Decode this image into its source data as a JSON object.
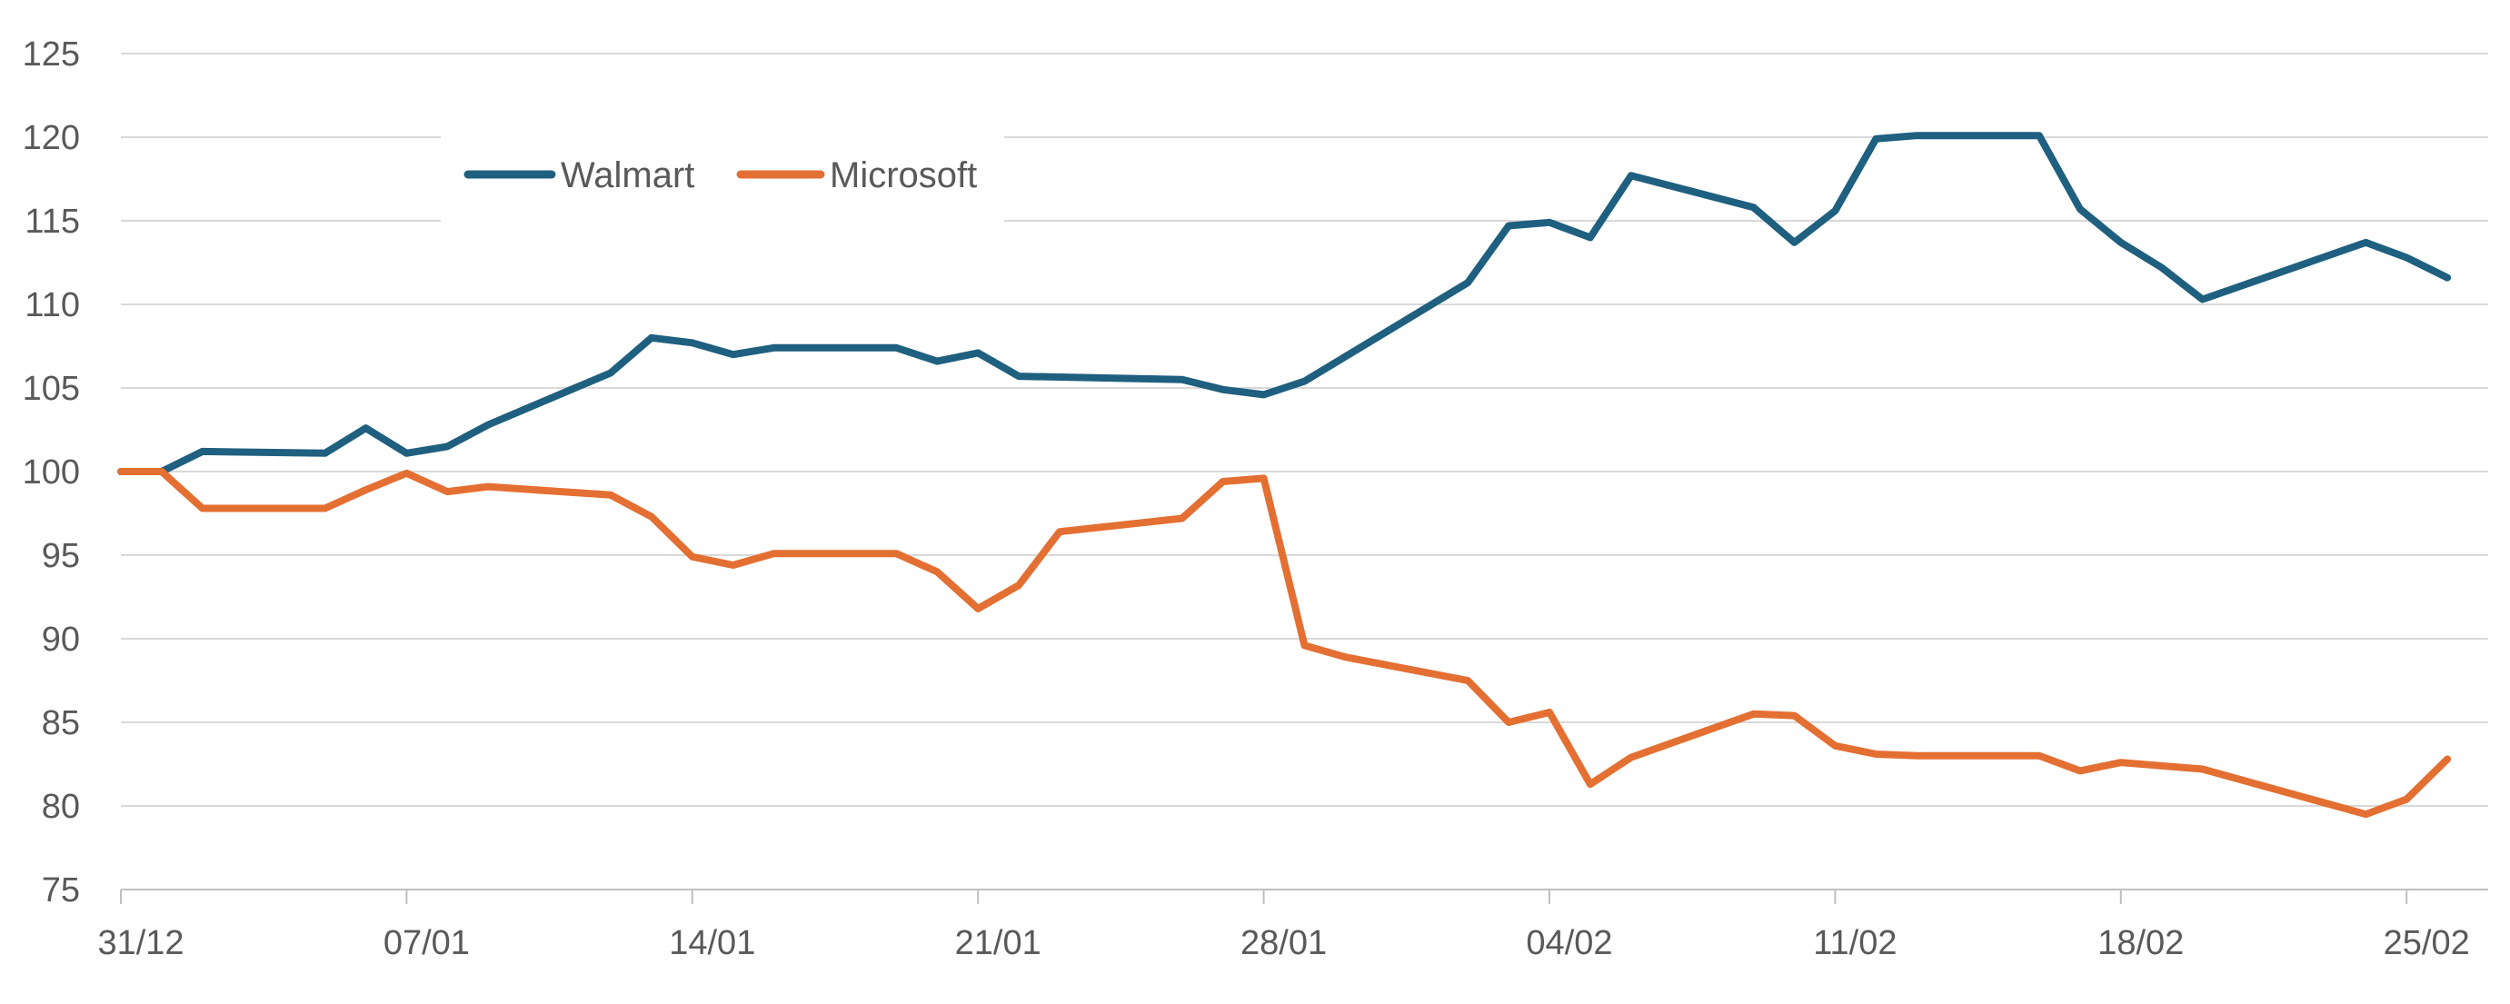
{
  "chart_data": {
    "type": "line",
    "title": "",
    "xlabel": "",
    "ylabel": "",
    "ylim": [
      75,
      125
    ],
    "yticks": [
      75,
      80,
      85,
      90,
      95,
      100,
      105,
      110,
      115,
      120,
      125
    ],
    "xlim": [
      0,
      58
    ],
    "xticks": [
      {
        "x": 0,
        "label": "31/12"
      },
      {
        "x": 7,
        "label": "07/01"
      },
      {
        "x": 14,
        "label": "14/01"
      },
      {
        "x": 21,
        "label": "21/01"
      },
      {
        "x": 28,
        "label": "28/01"
      },
      {
        "x": 35,
        "label": "04/02"
      },
      {
        "x": 42,
        "label": "11/02"
      },
      {
        "x": 49,
        "label": "18/02"
      },
      {
        "x": 56,
        "label": "25/02"
      }
    ],
    "grid": true,
    "legend": "top-left",
    "series": [
      {
        "name": "Walmart",
        "color": "#1f5f7f",
        "x": [
          0,
          1,
          2,
          5,
          6,
          7,
          8,
          9,
          12,
          13,
          14,
          15,
          16,
          19,
          20,
          21,
          22,
          26,
          27,
          28,
          29,
          33,
          34,
          35,
          36,
          37,
          40,
          41,
          42,
          43,
          44,
          47,
          48,
          49,
          50,
          51,
          55,
          56,
          57
        ],
        "values": [
          100.0,
          100.0,
          101.2,
          101.1,
          102.6,
          101.1,
          101.5,
          102.8,
          105.9,
          108.0,
          107.7,
          107.0,
          107.4,
          107.4,
          106.6,
          107.1,
          105.7,
          105.5,
          104.9,
          104.6,
          105.4,
          111.3,
          114.7,
          114.9,
          114.0,
          117.7,
          115.8,
          113.7,
          115.6,
          119.9,
          120.1,
          120.1,
          115.7,
          113.7,
          112.2,
          110.3,
          113.7,
          112.8,
          111.6
        ]
      },
      {
        "name": "Microsoft",
        "color": "#e46f32",
        "x": [
          0,
          1,
          2,
          5,
          6,
          7,
          8,
          9,
          12,
          13,
          14,
          15,
          16,
          19,
          20,
          21,
          22,
          23,
          26,
          27,
          28,
          29,
          30,
          33,
          34,
          35,
          36,
          37,
          40,
          41,
          42,
          43,
          44,
          47,
          48,
          49,
          51,
          55,
          56,
          57
        ],
        "values": [
          100.0,
          100.0,
          97.8,
          97.8,
          98.9,
          99.9,
          98.8,
          99.1,
          98.6,
          97.3,
          94.9,
          94.4,
          95.1,
          95.1,
          94.0,
          91.8,
          93.2,
          96.4,
          97.2,
          99.4,
          99.6,
          89.6,
          88.9,
          87.5,
          85.0,
          85.6,
          81.3,
          82.9,
          85.5,
          85.4,
          83.6,
          83.1,
          83.0,
          83.0,
          82.1,
          82.6,
          82.2,
          79.5,
          80.4,
          82.8
        ]
      }
    ]
  }
}
